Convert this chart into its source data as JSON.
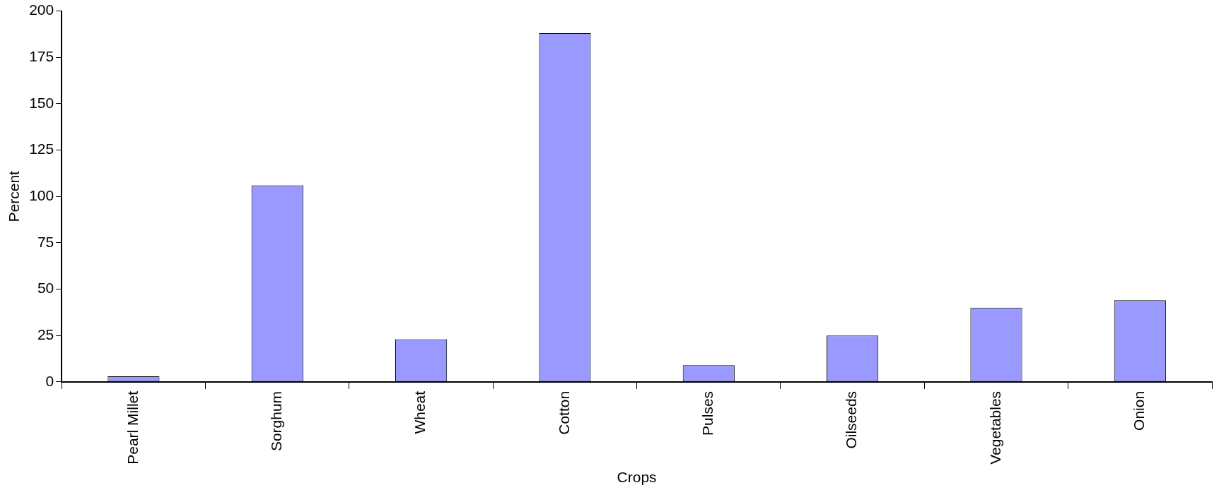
{
  "chart_data": {
    "type": "bar",
    "xlabel": "Crops",
    "ylabel": "Percent",
    "categories": [
      "Pearl Millet",
      "Sorghum",
      "Wheat",
      "Cotton",
      "Pulses",
      "Oilseeds",
      "Vegetables",
      "Onion"
    ],
    "values": [
      3,
      106,
      23,
      188,
      9,
      25,
      40,
      44
    ],
    "color": "#9999ff",
    "ylim": [
      0,
      200
    ],
    "yticks": [
      0,
      25,
      50,
      75,
      100,
      125,
      150,
      175,
      200
    ],
    "grid": false,
    "legend": false
  }
}
